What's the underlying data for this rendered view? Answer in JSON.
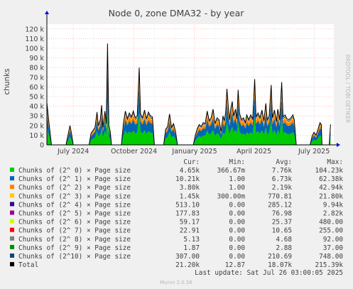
{
  "chart_data": {
    "type": "area",
    "stacked": true,
    "title": "Node 0, zone DMA32 - by year",
    "ylabel": "chunks",
    "xlabel": "",
    "ylim": [
      0,
      125000
    ],
    "yticks": [
      {
        "value": 0,
        "label": "0"
      },
      {
        "value": 10000,
        "label": "10 k"
      },
      {
        "value": 20000,
        "label": "20 k"
      },
      {
        "value": 30000,
        "label": "30 k"
      },
      {
        "value": 40000,
        "label": "40 k"
      },
      {
        "value": 50000,
        "label": "50 k"
      },
      {
        "value": 60000,
        "label": "60 k"
      },
      {
        "value": 70000,
        "label": "70 k"
      },
      {
        "value": 80000,
        "label": "80 k"
      },
      {
        "value": 90000,
        "label": "90 k"
      },
      {
        "value": 100000,
        "label": "100 k"
      },
      {
        "value": 110000,
        "label": "110 k"
      },
      {
        "value": 120000,
        "label": "120 k"
      }
    ],
    "xlim": [
      "2024-05-22",
      "2025-07-31"
    ],
    "xticks": [
      {
        "date": "2024-07-01",
        "label": "July 2024"
      },
      {
        "date": "2024-10-01",
        "label": "October 2024"
      },
      {
        "date": "2025-01-01",
        "label": "January 2025"
      },
      {
        "date": "2025-04-01",
        "label": "April 2025"
      },
      {
        "date": "2025-07-01",
        "label": "July 2025"
      }
    ],
    "minor_xticks": [
      "2024-06-01",
      "2024-08-01",
      "2024-09-01",
      "2024-11-01",
      "2024-12-01",
      "2025-02-01",
      "2025-03-01",
      "2025-05-01",
      "2025-06-01"
    ],
    "grid": true,
    "legend_placement": "bottom",
    "legend_headers": [
      "Cur:",
      "Min:",
      "Avg:",
      "Max:"
    ],
    "series": [
      {
        "name": "Chunks of (2^ 0) × Page size",
        "color": "#00cc00",
        "cur": "4.65k",
        "min": "366.67m",
        "avg": "7.76k",
        "max": "104.23k"
      },
      {
        "name": "Chunks of (2^ 1) × Page size",
        "color": "#0066b3",
        "cur": "10.21k",
        "min": "1.00",
        "avg": "6.73k",
        "max": "62.38k"
      },
      {
        "name": "Chunks of (2^ 2) × Page size",
        "color": "#ff8000",
        "cur": "3.80k",
        "min": "1.00",
        "avg": "2.19k",
        "max": "42.94k"
      },
      {
        "name": "Chunks of (2^ 3) × Page size",
        "color": "#ffcc00",
        "cur": "1.45k",
        "min": "300.00m",
        "avg": "770.81",
        "max": "21.80k"
      },
      {
        "name": "Chunks of (2^ 4) × Page size",
        "color": "#330099",
        "cur": "513.10",
        "min": "0.00",
        "avg": "285.12",
        "max": "9.94k"
      },
      {
        "name": "Chunks of (2^ 5) × Page size",
        "color": "#990099",
        "cur": "177.83",
        "min": "0.00",
        "avg": "76.98",
        "max": "2.82k"
      },
      {
        "name": "Chunks of (2^ 6) × Page size",
        "color": "#ccff00",
        "cur": "59.17",
        "min": "0.00",
        "avg": "25.37",
        "max": "480.00"
      },
      {
        "name": "Chunks of (2^ 7) × Page size",
        "color": "#ff0000",
        "cur": "22.91",
        "min": "0.00",
        "avg": "10.65",
        "max": "255.00"
      },
      {
        "name": "Chunks of (2^ 8) × Page size",
        "color": "#808080",
        "cur": "5.13",
        "min": "0.00",
        "avg": "4.68",
        "max": "92.00"
      },
      {
        "name": "Chunks of (2^ 9) × Page size",
        "color": "#008f00",
        "cur": "1.87",
        "min": "0.00",
        "avg": "2.88",
        "max": "37.00"
      },
      {
        "name": "Chunks of (2^10) × Page size",
        "color": "#00487d",
        "cur": "307.00",
        "min": "0.00",
        "avg": "210.69",
        "max": "748.00"
      },
      {
        "name": "Total",
        "color": "#000000",
        "cur": "21.20k",
        "min": "12.87",
        "avg": "18.07k",
        "max": "215.39k"
      }
    ],
    "total_profile": [
      {
        "date": "2024-05-22",
        "v": 44000
      },
      {
        "date": "2024-05-24",
        "v": 30000
      },
      {
        "date": "2024-05-27",
        "v": 12000
      },
      {
        "date": "2024-05-29",
        "v": 0
      },
      {
        "date": "2024-06-20",
        "v": 0
      },
      {
        "date": "2024-06-23",
        "v": 10000
      },
      {
        "date": "2024-06-26",
        "v": 20000
      },
      {
        "date": "2024-06-28",
        "v": 13000
      },
      {
        "date": "2024-07-01",
        "v": 0
      },
      {
        "date": "2024-07-25",
        "v": 0
      },
      {
        "date": "2024-07-28",
        "v": 12000
      },
      {
        "date": "2024-07-31",
        "v": 15000
      },
      {
        "date": "2024-08-03",
        "v": 18000
      },
      {
        "date": "2024-08-06",
        "v": 34000
      },
      {
        "date": "2024-08-08",
        "v": 20000
      },
      {
        "date": "2024-08-11",
        "v": 26000
      },
      {
        "date": "2024-08-13",
        "v": 41000
      },
      {
        "date": "2024-08-15",
        "v": 18000
      },
      {
        "date": "2024-08-18",
        "v": 35000
      },
      {
        "date": "2024-08-20",
        "v": 22000
      },
      {
        "date": "2024-08-22",
        "v": 105000
      },
      {
        "date": "2024-08-24",
        "v": 20000
      },
      {
        "date": "2024-08-26",
        "v": 14000
      },
      {
        "date": "2024-08-28",
        "v": 0
      },
      {
        "date": "2024-09-12",
        "v": 0
      },
      {
        "date": "2024-09-15",
        "v": 22000
      },
      {
        "date": "2024-09-18",
        "v": 35000
      },
      {
        "date": "2024-09-21",
        "v": 27000
      },
      {
        "date": "2024-09-24",
        "v": 33000
      },
      {
        "date": "2024-09-27",
        "v": 29000
      },
      {
        "date": "2024-09-30",
        "v": 35000
      },
      {
        "date": "2024-10-03",
        "v": 28000
      },
      {
        "date": "2024-10-06",
        "v": 30000
      },
      {
        "date": "2024-10-09",
        "v": 80000
      },
      {
        "date": "2024-10-11",
        "v": 32000
      },
      {
        "date": "2024-10-14",
        "v": 28000
      },
      {
        "date": "2024-10-17",
        "v": 36000
      },
      {
        "date": "2024-10-20",
        "v": 27000
      },
      {
        "date": "2024-10-23",
        "v": 34000
      },
      {
        "date": "2024-10-26",
        "v": 30000
      },
      {
        "date": "2024-10-29",
        "v": 29000
      },
      {
        "date": "2024-11-01",
        "v": 0
      },
      {
        "date": "2024-11-15",
        "v": 0
      },
      {
        "date": "2024-11-18",
        "v": 16000
      },
      {
        "date": "2024-11-21",
        "v": 19000
      },
      {
        "date": "2024-11-24",
        "v": 32000
      },
      {
        "date": "2024-11-27",
        "v": 18000
      },
      {
        "date": "2024-11-30",
        "v": 22000
      },
      {
        "date": "2024-12-03",
        "v": 14000
      },
      {
        "date": "2024-12-06",
        "v": 0
      },
      {
        "date": "2024-12-30",
        "v": 0
      },
      {
        "date": "2025-01-02",
        "v": 10000
      },
      {
        "date": "2025-01-05",
        "v": 17000
      },
      {
        "date": "2025-01-08",
        "v": 21000
      },
      {
        "date": "2025-01-11",
        "v": 19000
      },
      {
        "date": "2025-01-14",
        "v": 23000
      },
      {
        "date": "2025-01-17",
        "v": 22000
      },
      {
        "date": "2025-01-20",
        "v": 35000
      },
      {
        "date": "2025-01-23",
        "v": 25000
      },
      {
        "date": "2025-01-26",
        "v": 28000
      },
      {
        "date": "2025-01-29",
        "v": 37000
      },
      {
        "date": "2025-02-01",
        "v": 22000
      },
      {
        "date": "2025-02-04",
        "v": 28000
      },
      {
        "date": "2025-02-07",
        "v": 26000
      },
      {
        "date": "2025-02-10",
        "v": 14000
      },
      {
        "date": "2025-02-13",
        "v": 30000
      },
      {
        "date": "2025-02-15",
        "v": 25000
      },
      {
        "date": "2025-02-17",
        "v": 33000
      },
      {
        "date": "2025-02-19",
        "v": 58000
      },
      {
        "date": "2025-02-21",
        "v": 40000
      },
      {
        "date": "2025-02-23",
        "v": 26000
      },
      {
        "date": "2025-02-25",
        "v": 38000
      },
      {
        "date": "2025-02-27",
        "v": 45000
      },
      {
        "date": "2025-03-01",
        "v": 30000
      },
      {
        "date": "2025-03-04",
        "v": 37000
      },
      {
        "date": "2025-03-06",
        "v": 27000
      },
      {
        "date": "2025-03-08",
        "v": 57000
      },
      {
        "date": "2025-03-10",
        "v": 33000
      },
      {
        "date": "2025-03-13",
        "v": 26000
      },
      {
        "date": "2025-03-16",
        "v": 28000
      },
      {
        "date": "2025-03-19",
        "v": 23000
      },
      {
        "date": "2025-03-21",
        "v": 31000
      },
      {
        "date": "2025-03-24",
        "v": 26000
      },
      {
        "date": "2025-03-27",
        "v": 31000
      },
      {
        "date": "2025-03-30",
        "v": 27000
      },
      {
        "date": "2025-04-02",
        "v": 68000
      },
      {
        "date": "2025-04-04",
        "v": 29000
      },
      {
        "date": "2025-04-07",
        "v": 33000
      },
      {
        "date": "2025-04-10",
        "v": 28000
      },
      {
        "date": "2025-04-13",
        "v": 36000
      },
      {
        "date": "2025-04-16",
        "v": 25000
      },
      {
        "date": "2025-04-19",
        "v": 43000
      },
      {
        "date": "2025-04-21",
        "v": 26000
      },
      {
        "date": "2025-04-24",
        "v": 30000
      },
      {
        "date": "2025-04-27",
        "v": 62000
      },
      {
        "date": "2025-04-29",
        "v": 28000
      },
      {
        "date": "2025-05-02",
        "v": 36000
      },
      {
        "date": "2025-05-05",
        "v": 24000
      },
      {
        "date": "2025-05-07",
        "v": 37000
      },
      {
        "date": "2025-05-10",
        "v": 26000
      },
      {
        "date": "2025-05-13",
        "v": 65000
      },
      {
        "date": "2025-05-15",
        "v": 29000
      },
      {
        "date": "2025-05-18",
        "v": 31000
      },
      {
        "date": "2025-05-21",
        "v": 27000
      },
      {
        "date": "2025-05-24",
        "v": 26000
      },
      {
        "date": "2025-05-27",
        "v": 28000
      },
      {
        "date": "2025-05-30",
        "v": 31000
      },
      {
        "date": "2025-06-01",
        "v": 26000
      },
      {
        "date": "2025-06-04",
        "v": 0
      },
      {
        "date": "2025-06-25",
        "v": 0
      },
      {
        "date": "2025-06-28",
        "v": 9000
      },
      {
        "date": "2025-07-01",
        "v": 13000
      },
      {
        "date": "2025-07-04",
        "v": 10000
      },
      {
        "date": "2025-07-07",
        "v": 16000
      },
      {
        "date": "2025-07-10",
        "v": 23000
      },
      {
        "date": "2025-07-12",
        "v": 21000
      },
      {
        "date": "2025-07-13",
        "v": 0
      },
      {
        "date": "2025-07-24",
        "v": 0
      },
      {
        "date": "2025-07-26",
        "v": 21200
      }
    ],
    "layer_fractions": [
      0.42,
      0.33,
      0.12,
      0.05,
      0.02,
      0.006,
      0.002,
      0.001,
      0.001,
      0.001,
      0.01
    ]
  },
  "side_label": "RRDTOOL / TOBI OETIKER",
  "last_update": "Last update: Sat Jul 26 03:00:05 2025",
  "footer": "Munin 2.0.56"
}
